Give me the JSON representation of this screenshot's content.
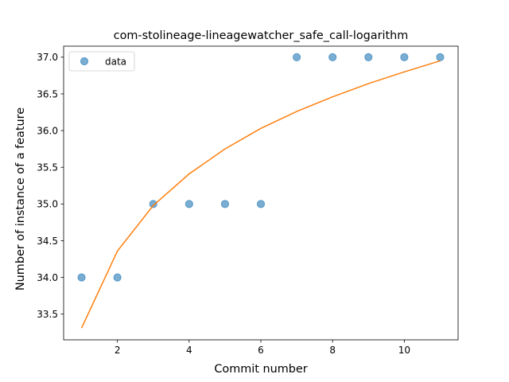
{
  "chart_data": {
    "type": "scatter",
    "title": "com-stolineage-lineagewatcher_safe_call-logarithm",
    "xlabel": "Commit number",
    "ylabel": "Number of instance of a feature",
    "xlim": [
      0.5,
      11.5
    ],
    "ylim": [
      33.15,
      37.15
    ],
    "x_ticks": [
      2,
      4,
      6,
      8,
      10
    ],
    "y_ticks": [
      33.5,
      34.0,
      34.5,
      35.0,
      35.5,
      36.0,
      36.5,
      37.0
    ],
    "x_tick_labels": [
      "2",
      "4",
      "6",
      "8",
      "10"
    ],
    "y_tick_labels": [
      "33.5",
      "34.0",
      "34.5",
      "35.0",
      "35.5",
      "36.0",
      "36.5",
      "37.0"
    ],
    "grid": false,
    "legend_position": "top-left",
    "series": [
      {
        "name": "data",
        "kind": "scatter",
        "color": "#1f77b4",
        "x": [
          1,
          2,
          3,
          4,
          5,
          6,
          7,
          8,
          9,
          10,
          11
        ],
        "y": [
          34,
          34,
          35,
          35,
          35,
          35,
          37,
          37,
          37,
          37,
          37
        ]
      },
      {
        "kind": "line",
        "color": "#ff7f0e",
        "x": [
          1,
          2,
          3,
          4,
          5,
          6,
          7,
          8,
          9,
          10,
          11
        ],
        "y": [
          33.31,
          34.36,
          34.98,
          35.41,
          35.75,
          36.03,
          36.26,
          36.46,
          36.64,
          36.8,
          36.95
        ]
      }
    ]
  }
}
